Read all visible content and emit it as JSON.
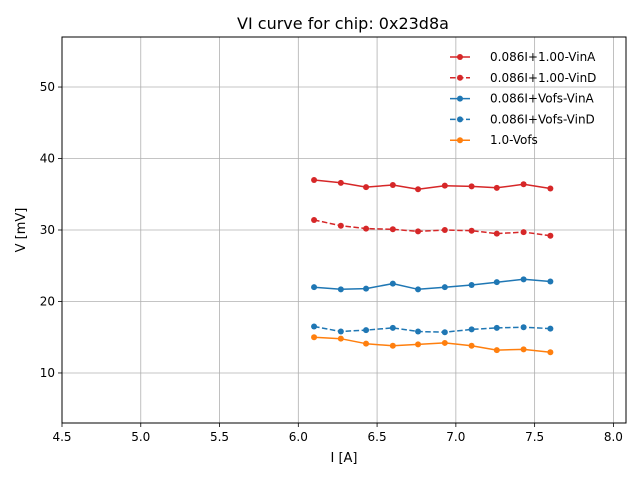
{
  "chart_data": {
    "type": "line",
    "title": "VI curve for chip: 0x23d8a",
    "xlabel": "I [A]",
    "ylabel": "V [mV]",
    "xlim": [
      4.5,
      8.08
    ],
    "ylim": [
      3,
      57
    ],
    "xticks": [
      4.5,
      5.0,
      5.5,
      6.0,
      6.5,
      7.0,
      7.5,
      8.0
    ],
    "xtick_labels": [
      "4.5",
      "5.0",
      "5.5",
      "6.0",
      "6.5",
      "7.0",
      "7.5",
      "8.0"
    ],
    "yticks": [
      10,
      20,
      30,
      40,
      50
    ],
    "ytick_labels": [
      "10",
      "20",
      "30",
      "40",
      "50"
    ],
    "grid": true,
    "legend_position": "top-right",
    "x": [
      6.1,
      6.27,
      6.43,
      6.6,
      6.76,
      6.93,
      7.1,
      7.26,
      7.43,
      7.6
    ],
    "series": [
      {
        "name": "0.086I+1.00-VinA",
        "color": "#d62728",
        "dashed": false,
        "values": [
          37.0,
          36.6,
          36.0,
          36.3,
          35.7,
          36.2,
          36.1,
          35.9,
          36.4,
          35.8
        ]
      },
      {
        "name": "0.086I+1.00-VinD",
        "color": "#d62728",
        "dashed": true,
        "values": [
          31.4,
          30.6,
          30.2,
          30.1,
          29.8,
          30.0,
          29.9,
          29.5,
          29.7,
          29.2
        ]
      },
      {
        "name": "0.086I+Vofs-VinA",
        "color": "#1f77b4",
        "dashed": false,
        "values": [
          22.0,
          21.7,
          21.8,
          22.5,
          21.7,
          22.0,
          22.3,
          22.7,
          23.1,
          22.8
        ]
      },
      {
        "name": "0.086I+Vofs-VinD",
        "color": "#1f77b4",
        "dashed": true,
        "values": [
          16.5,
          15.8,
          16.0,
          16.3,
          15.8,
          15.7,
          16.1,
          16.3,
          16.4,
          16.2
        ]
      },
      {
        "name": "1.0-Vofs",
        "color": "#ff7f0e",
        "dashed": false,
        "values": [
          15.0,
          14.8,
          14.1,
          13.8,
          14.0,
          14.2,
          13.8,
          13.2,
          13.3,
          12.9
        ]
      }
    ]
  }
}
